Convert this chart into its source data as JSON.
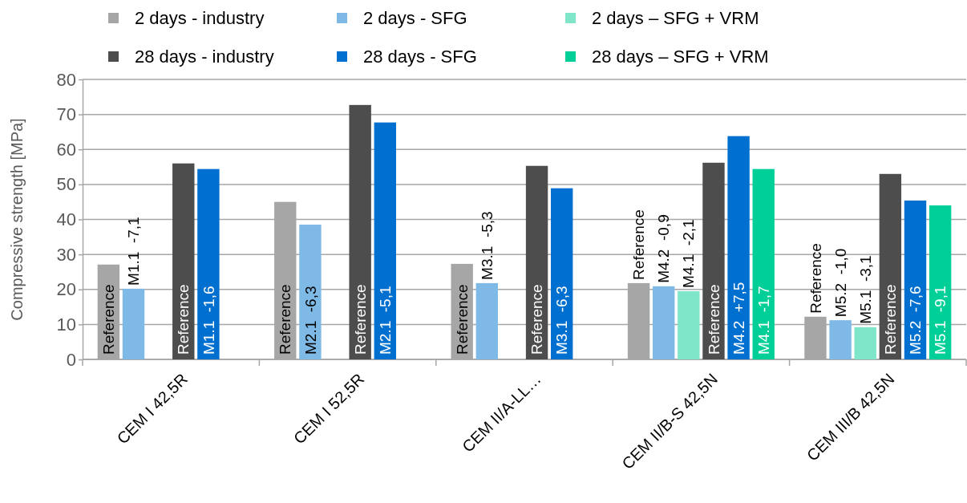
{
  "chart_data": {
    "type": "bar",
    "ylabel": "Compressive strength [MPa]",
    "categories": [
      "CEM I 42,5R",
      "CEM I 52,5R",
      "CEM II/A-LL…",
      "CEM II/B-S 42,5N",
      "CEM III/B 42,5N"
    ],
    "series": [
      {
        "name": "2 days - industry",
        "color": "#a6a6a6",
        "values": [
          27.1,
          45.0,
          27.3,
          21.8,
          12.2
        ],
        "value_labels": [
          "Reference",
          "Reference",
          "Reference",
          "Reference",
          "Reference"
        ]
      },
      {
        "name": "2 days - SFG",
        "color": "#7fb9e6",
        "values": [
          20.2,
          38.5,
          21.8,
          20.9,
          11.2
        ],
        "value_labels": [
          "M1.1  -7,1",
          "M2.1  -6,3",
          "M3.1  -5,3",
          "M4.2  -0,9",
          "M5.2  -1,0"
        ]
      },
      {
        "name": "2 days – SFG + VRM",
        "color": "#7fe6c9",
        "values": [
          null,
          null,
          null,
          19.5,
          9.2
        ],
        "value_labels": [
          null,
          null,
          null,
          "M4.1  -2,1",
          "M5.1  -3,1"
        ]
      },
      {
        "name": "28 days - industry",
        "color": "#4d4d4d",
        "values": [
          56.0,
          72.7,
          55.3,
          56.2,
          53.0
        ],
        "value_labels": [
          "Reference",
          "Reference",
          "Reference",
          "Reference",
          "Reference"
        ]
      },
      {
        "name": "28 days - SFG",
        "color": "#0070d0",
        "values": [
          54.4,
          67.7,
          48.9,
          63.8,
          45.4
        ],
        "value_labels": [
          "M1.1  -1,6",
          "M2.1  -5,1",
          "M3.1  -6,3",
          "M4.2  +7,5",
          "M5.2  -7,6"
        ]
      },
      {
        "name": "28 days – SFG + VRM",
        "color": "#00d098",
        "values": [
          null,
          null,
          null,
          54.4,
          44.0
        ],
        "value_labels": [
          null,
          null,
          null,
          "M4.1  -1,7",
          "M5.1  -9,1"
        ]
      }
    ],
    "ylim": [
      0,
      80
    ],
    "yticks": [
      0,
      10,
      20,
      30,
      40,
      50,
      60,
      70,
      80
    ],
    "grid": "y",
    "legend": "top"
  }
}
